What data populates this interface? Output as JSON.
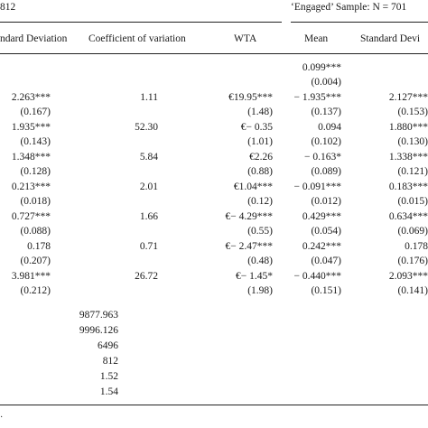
{
  "samples": {
    "left_title": "812",
    "right_title": "‘Engaged’ Sample: N = 701"
  },
  "headers": {
    "std_dev_left": "ndard Deviation",
    "cv": "Coefficient of variation",
    "wta": "WTA",
    "mean": "Mean",
    "std_dev_right": "Standard Devi"
  },
  "rows": [
    {
      "sd": "",
      "sd_se": "",
      "cv": "",
      "wta": "",
      "wta_se": "",
      "mean": "0.099***",
      "mean_se": "(0.004)",
      "sdr": "",
      "sdr_se": ""
    },
    {
      "sd": "2.263***",
      "sd_se": "(0.167)",
      "cv": "1.11",
      "wta": "€19.95***",
      "wta_se": "(1.48)",
      "mean": "− 1.935***",
      "mean_se": "(0.137)",
      "sdr": "2.127***",
      "sdr_se": "(0.153)"
    },
    {
      "sd": "1.935***",
      "sd_se": "(0.143)",
      "cv": "52.30",
      "wta": "€− 0.35",
      "wta_se": "(1.01)",
      "mean": "0.094",
      "mean_se": "(0.102)",
      "sdr": "1.880***",
      "sdr_se": "(0.130)"
    },
    {
      "sd": "1.348***",
      "sd_se": "(0.128)",
      "cv": "5.84",
      "wta": "€2.26",
      "wta_se": "(0.88)",
      "mean": "− 0.163*",
      "mean_se": "(0.089)",
      "sdr": "1.338***",
      "sdr_se": "(0.121)"
    },
    {
      "sd": "0.213***",
      "sd_se": "(0.018)",
      "cv": "2.01",
      "wta": "€1.04***",
      "wta_se": "(0.12)",
      "mean": "− 0.091***",
      "mean_se": "(0.012)",
      "sdr": "0.183***",
      "sdr_se": "(0.015)"
    },
    {
      "sd": "0.727***",
      "sd_se": "(0.088)",
      "cv": "1.66",
      "wta": "€− 4.29***",
      "wta_se": "(0.55)",
      "mean": "0.429***",
      "mean_se": "(0.054)",
      "sdr": "0.634***",
      "sdr_se": "(0.069)"
    },
    {
      "sd": "0.178",
      "sd_se": "(0.207)",
      "cv": "0.71",
      "wta": "€− 2.47***",
      "wta_se": "(0.48)",
      "mean": "0.242***",
      "mean_se": "(0.047)",
      "sdr": "0.178",
      "sdr_se": "(0.176)"
    },
    {
      "sd": "3.981***",
      "sd_se": "(0.212)",
      "cv": "26.72",
      "wta": "€− 1.45*",
      "wta_se": "(1.98)",
      "mean": "− 0.440***",
      "mean_se": "(0.151)",
      "sdr": "2.093***",
      "sdr_se": "(0.141)"
    }
  ],
  "stats": [
    "9877.963",
    "9996.126",
    "6496",
    "812",
    "1.52",
    "1.54"
  ]
}
